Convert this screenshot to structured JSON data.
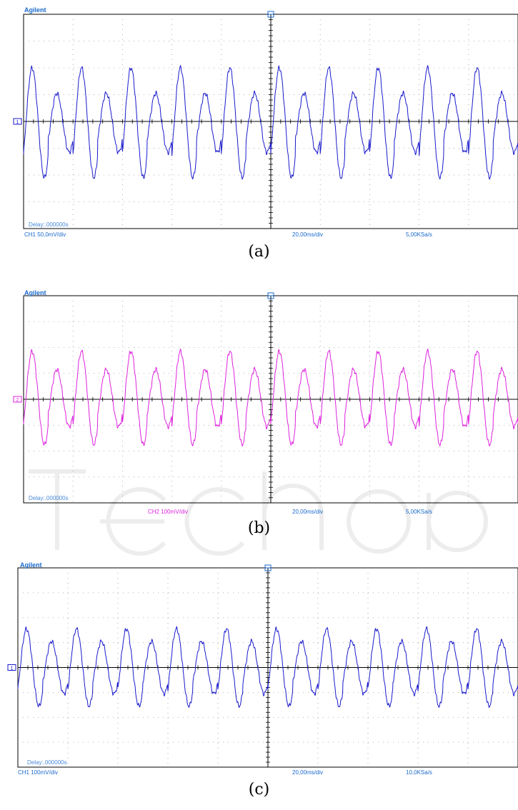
{
  "panels": [
    {
      "brand": "Agilent",
      "delay": "Delay:.000000s",
      "channel_label": "CH1 50,0mV/div",
      "timebase": "20,00ms/div",
      "sample_rate": "5,00KSa/s",
      "channel_marker": "1",
      "trace_color": "#1a1acc",
      "caption": "(a)"
    },
    {
      "brand": "Agilent",
      "delay": "Delay:.000000s",
      "channel_label": "CH2 100mV/div",
      "timebase": "20,00ms/div",
      "sample_rate": "5,00KSa/s",
      "channel_marker": "2",
      "trace_color": "#dd22dd",
      "caption": "(b)"
    },
    {
      "brand": "Agilent",
      "delay": "Delay:.000000s",
      "channel_label": "CH1 100mV/div",
      "timebase": "20,00ms/div",
      "sample_rate": "10,0KSa/s",
      "channel_marker": "1",
      "trace_color": "#1a1acc",
      "caption": "(c)"
    }
  ],
  "chart_data": [
    {
      "type": "line",
      "xlabel": "",
      "ylabel": "",
      "time_per_div_ms": 20,
      "divisions_x": 10,
      "divisions_y": 8,
      "xlim_ms": [
        0,
        200
      ],
      "ylim_div": [
        -4,
        4
      ],
      "grid": true,
      "series": [
        {
          "frequency_hz": 100,
          "amplitude_div": [
            2.05,
            1.1
          ],
          "offset_div": -0.05
        }
      ]
    },
    {
      "type": "line",
      "xlabel": "",
      "ylabel": "",
      "time_per_div_ms": 20,
      "divisions_x": 10,
      "divisions_y": 8,
      "xlim_ms": [
        0,
        200
      ],
      "ylim_div": [
        -4,
        4
      ],
      "grid": true,
      "series": [
        {
          "frequency_hz": 100,
          "amplitude_div": [
            1.8,
            1.1
          ],
          "offset_div": 0.05
        }
      ]
    },
    {
      "type": "line",
      "xlabel": "",
      "ylabel": "",
      "time_per_div_ms": 20,
      "divisions_x": 10,
      "divisions_y": 8,
      "xlim_ms": [
        0,
        200
      ],
      "ylim_div": [
        -4,
        4
      ],
      "grid": true,
      "series": [
        {
          "frequency_hz": 100,
          "amplitude_div": [
            1.55,
            1.05
          ],
          "offset_div": 0.0
        }
      ]
    }
  ]
}
